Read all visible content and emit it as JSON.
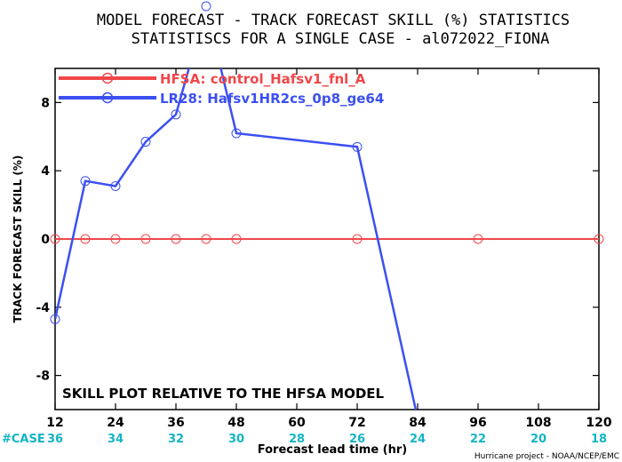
{
  "chart_data": {
    "type": "line",
    "title_line1": "MODEL FORECAST - TRACK FORECAST SKILL (%) STATISTICS",
    "title_line2": "STATISTISCS FOR A SINGLE CASE - al072022_FIONA",
    "ylabel": "TRACK FORECAST SKILL (%)",
    "xlabel": "Forecast lead time (hr)",
    "annotation": "SKILL PLOT RELATIVE TO THE HFSA MODEL",
    "credit": "Hurricane project - NOAA/NCEP/EMC",
    "case_label": "#CASE",
    "xlim": [
      12,
      120
    ],
    "ylim": [
      -10,
      10
    ],
    "x_ticks": [
      "12",
      "24",
      "36",
      "48",
      "60",
      "72",
      "84",
      "96",
      "108",
      "120"
    ],
    "y_ticks": [
      "8",
      "4",
      "0",
      "-4",
      "-8"
    ],
    "case_counts": [
      "36",
      "34",
      "32",
      "30",
      "28",
      "26",
      "24",
      "22",
      "20",
      "18"
    ],
    "grid": false,
    "legend_position": "top-left",
    "series": [
      {
        "name": "HFSA: control_Hafsv1_fnl_A",
        "color": "#f0474a",
        "x": [
          12,
          18,
          24,
          30,
          36,
          42,
          48,
          72,
          96,
          120
        ],
        "y": [
          0,
          0,
          0,
          0,
          0,
          0,
          0,
          0,
          0,
          0
        ]
      },
      {
        "name": "LR28: Hafsv1HR2cs_0p8_ge64",
        "color": "#3c50f0",
        "x": [
          12,
          18,
          24,
          30,
          36,
          42,
          48,
          72,
          84
        ],
        "y": [
          -4.7,
          3.4,
          3.1,
          5.7,
          7.3,
          13.6,
          6.2,
          5.4,
          -10.5
        ]
      }
    ]
  }
}
